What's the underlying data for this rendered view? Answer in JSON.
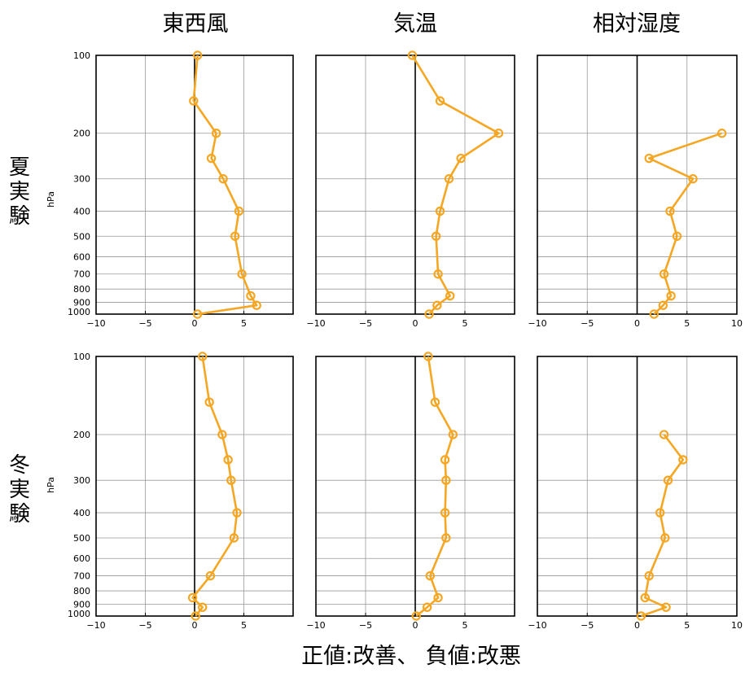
{
  "column_titles": [
    "東西風",
    "気温",
    "相対湿度"
  ],
  "row_titles": [
    "夏実験",
    "冬実験"
  ],
  "pressure_unit": "hPa",
  "footer": "正値:改善、 負値:改悪",
  "colors": {
    "series": "#f5a623",
    "zero_line": "#000000",
    "grid": "#999999",
    "frame": "#000000"
  },
  "chart_data": [
    {
      "type": "line",
      "row": "夏実験",
      "column": "東西風",
      "xlim": [
        -10,
        10
      ],
      "xticks": [
        -10,
        -5,
        0,
        5,
        10
      ],
      "yscale": "log",
      "ylim": [
        1000,
        100
      ],
      "yticks": [
        100,
        200,
        300,
        400,
        500,
        600,
        700,
        800,
        900,
        1000
      ],
      "grid": true,
      "points": [
        {
          "x": 0.3,
          "y": 100
        },
        {
          "x": -0.1,
          "y": 150
        },
        {
          "x": 2.2,
          "y": 200
        },
        {
          "x": 1.7,
          "y": 250
        },
        {
          "x": 2.9,
          "y": 300
        },
        {
          "x": 4.5,
          "y": 400
        },
        {
          "x": 4.1,
          "y": 500
        },
        {
          "x": 4.8,
          "y": 700
        },
        {
          "x": 5.7,
          "y": 850
        },
        {
          "x": 6.3,
          "y": 925
        },
        {
          "x": 0.3,
          "y": 1000
        }
      ]
    },
    {
      "type": "line",
      "row": "夏実験",
      "column": "気温",
      "xlim": [
        -10,
        10
      ],
      "xticks": [
        -10,
        -5,
        0,
        5,
        10
      ],
      "yscale": "log",
      "ylim": [
        1000,
        100
      ],
      "yticks": [
        100,
        200,
        300,
        400,
        500,
        600,
        700,
        800,
        900,
        1000
      ],
      "grid": true,
      "points": [
        {
          "x": -0.3,
          "y": 100
        },
        {
          "x": 2.5,
          "y": 150
        },
        {
          "x": 8.4,
          "y": 200
        },
        {
          "x": 4.6,
          "y": 250
        },
        {
          "x": 3.4,
          "y": 300
        },
        {
          "x": 2.5,
          "y": 400
        },
        {
          "x": 2.1,
          "y": 500
        },
        {
          "x": 2.3,
          "y": 700
        },
        {
          "x": 3.5,
          "y": 850
        },
        {
          "x": 2.2,
          "y": 925
        },
        {
          "x": 1.4,
          "y": 1000
        }
      ]
    },
    {
      "type": "line",
      "row": "夏実験",
      "column": "相対湿度",
      "xlim": [
        -10,
        10
      ],
      "xticks": [
        -10,
        -5,
        0,
        5,
        10
      ],
      "yscale": "log",
      "ylim": [
        1000,
        100
      ],
      "yticks": [
        100,
        200,
        300,
        400,
        500,
        600,
        700,
        800,
        900,
        1000
      ],
      "grid": true,
      "points": [
        {
          "x": 8.5,
          "y": 200
        },
        {
          "x": 1.2,
          "y": 250
        },
        {
          "x": 5.6,
          "y": 300
        },
        {
          "x": 3.3,
          "y": 400
        },
        {
          "x": 4.0,
          "y": 500
        },
        {
          "x": 2.7,
          "y": 700
        },
        {
          "x": 3.4,
          "y": 850
        },
        {
          "x": 2.6,
          "y": 925
        },
        {
          "x": 1.7,
          "y": 1000
        }
      ]
    },
    {
      "type": "line",
      "row": "冬実験",
      "column": "東西風",
      "xlim": [
        -10,
        10
      ],
      "xticks": [
        -10,
        -5,
        0,
        5,
        10
      ],
      "yscale": "log",
      "ylim": [
        1000,
        100
      ],
      "yticks": [
        100,
        200,
        300,
        400,
        500,
        600,
        700,
        800,
        900,
        1000
      ],
      "grid": true,
      "points": [
        {
          "x": 0.8,
          "y": 100
        },
        {
          "x": 1.5,
          "y": 150
        },
        {
          "x": 2.8,
          "y": 200
        },
        {
          "x": 3.4,
          "y": 250
        },
        {
          "x": 3.7,
          "y": 300
        },
        {
          "x": 4.3,
          "y": 400
        },
        {
          "x": 4.0,
          "y": 500
        },
        {
          "x": 1.6,
          "y": 700
        },
        {
          "x": -0.2,
          "y": 850
        },
        {
          "x": 0.8,
          "y": 925
        },
        {
          "x": 0.1,
          "y": 1000
        }
      ]
    },
    {
      "type": "line",
      "row": "冬実験",
      "column": "気温",
      "xlim": [
        -10,
        10
      ],
      "xticks": [
        -10,
        -5,
        0,
        5,
        10
      ],
      "yscale": "log",
      "ylim": [
        1000,
        100
      ],
      "yticks": [
        100,
        200,
        300,
        400,
        500,
        600,
        700,
        800,
        900,
        1000
      ],
      "grid": true,
      "points": [
        {
          "x": 1.3,
          "y": 100
        },
        {
          "x": 2.0,
          "y": 150
        },
        {
          "x": 3.8,
          "y": 200
        },
        {
          "x": 3.0,
          "y": 250
        },
        {
          "x": 3.1,
          "y": 300
        },
        {
          "x": 3.0,
          "y": 400
        },
        {
          "x": 3.1,
          "y": 500
        },
        {
          "x": 1.5,
          "y": 700
        },
        {
          "x": 2.3,
          "y": 850
        },
        {
          "x": 1.2,
          "y": 925
        },
        {
          "x": 0.1,
          "y": 1000
        }
      ]
    },
    {
      "type": "line",
      "row": "冬実験",
      "column": "相対湿度",
      "xlim": [
        -10,
        10
      ],
      "xticks": [
        -10,
        -5,
        0,
        5,
        10
      ],
      "yscale": "log",
      "ylim": [
        1000,
        100
      ],
      "yticks": [
        100,
        200,
        300,
        400,
        500,
        600,
        700,
        800,
        900,
        1000
      ],
      "grid": true,
      "points": [
        {
          "x": 2.7,
          "y": 200
        },
        {
          "x": 4.6,
          "y": 250
        },
        {
          "x": 3.1,
          "y": 300
        },
        {
          "x": 2.3,
          "y": 400
        },
        {
          "x": 2.8,
          "y": 500
        },
        {
          "x": 1.2,
          "y": 700
        },
        {
          "x": 0.8,
          "y": 850
        },
        {
          "x": 2.9,
          "y": 925
        },
        {
          "x": 0.4,
          "y": 1000
        }
      ]
    }
  ]
}
